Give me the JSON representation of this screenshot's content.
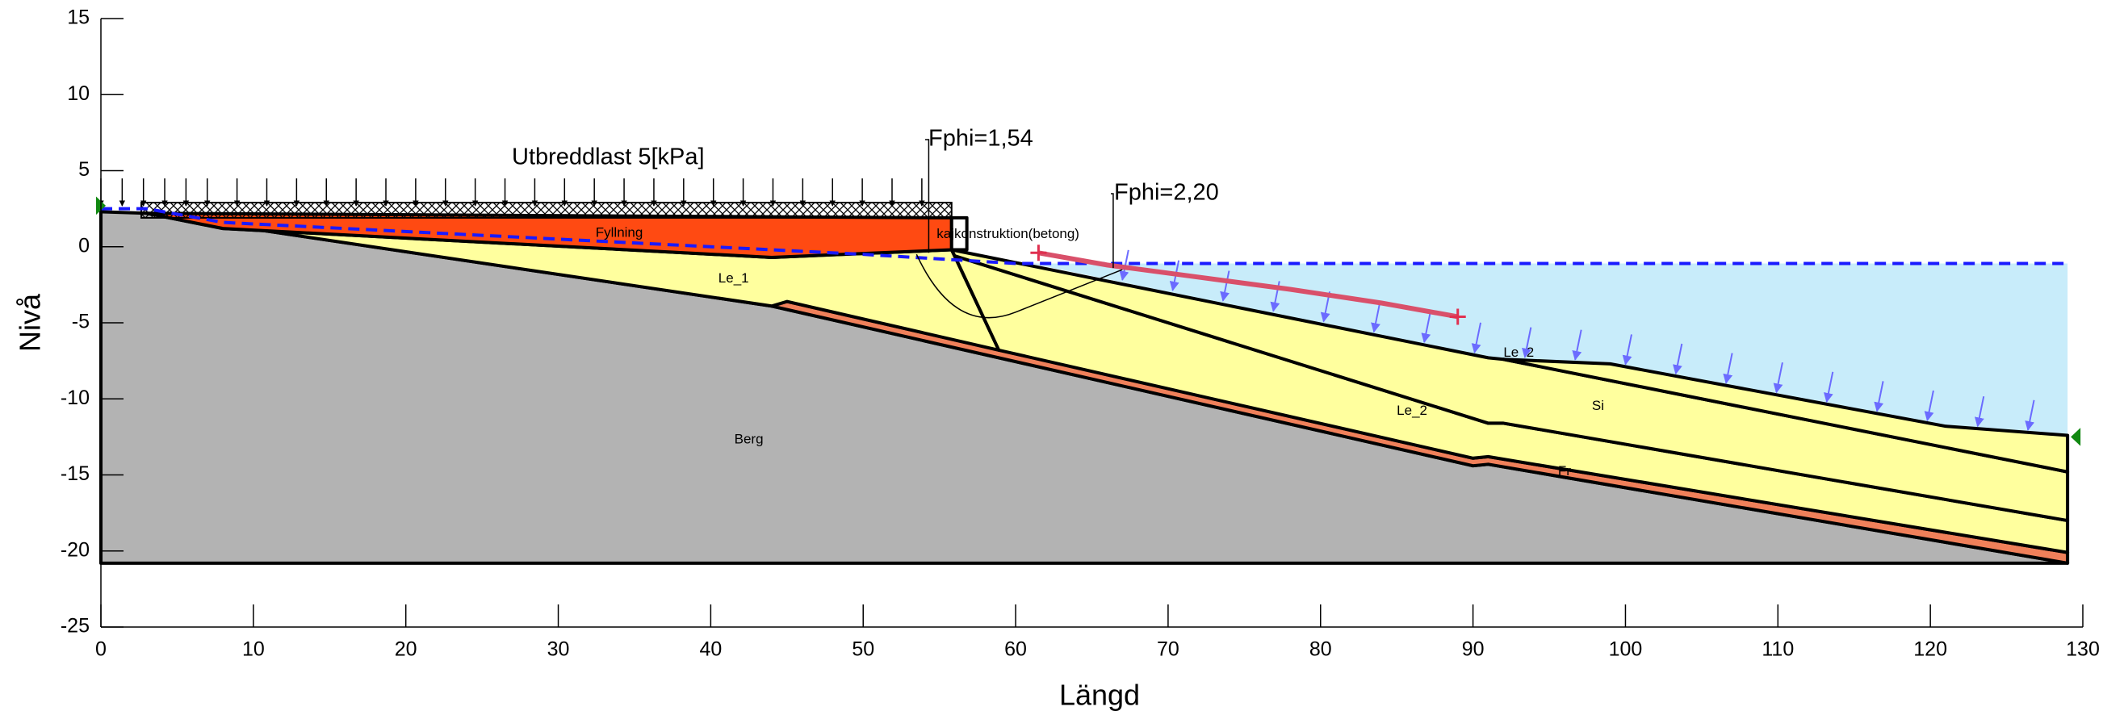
{
  "chart_data": {
    "type": "section",
    "x_label": "Längd",
    "y_label": "Nivå",
    "xlim": [
      0,
      130
    ],
    "ylim": [
      -25,
      15
    ],
    "xticks": [
      0,
      10,
      20,
      30,
      40,
      50,
      60,
      70,
      80,
      90,
      100,
      110,
      120,
      130
    ],
    "yticks": [
      15,
      10,
      5,
      0,
      -5,
      -10,
      -15,
      -20,
      -25
    ],
    "grid": false,
    "water": {
      "color": "#c8ecfa",
      "x": [
        61,
        129,
        129,
        121,
        99,
        91,
        61
      ],
      "y": [
        -1.1,
        -1.1,
        -12.4,
        -11.8,
        -7.7,
        -7.3,
        -1.1
      ]
    },
    "layers": [
      {
        "name": "Berg",
        "color": "#b3b3b3",
        "x": [
          0,
          3,
          44,
          90,
          91,
          129,
          129,
          0
        ],
        "y": [
          2.3,
          2.2,
          -3.9,
          -14.4,
          -14.3,
          -20.8,
          -20.8,
          -20.8
        ]
      },
      {
        "name": "Fr",
        "color": "#f0805a",
        "x": [
          44,
          45,
          90,
          91,
          129,
          129,
          91,
          90
        ],
        "y": [
          -3.9,
          -3.6,
          -13.9,
          -13.8,
          -20.1,
          -20.8,
          -14.3,
          -14.4
        ]
      },
      {
        "name": "Le_1",
        "color": "#ffff9e",
        "x": [
          3,
          8,
          44,
          55.8,
          58.9,
          45,
          44
        ],
        "y": [
          2.2,
          1.2,
          -0.7,
          -0.2,
          -6.8,
          -3.6,
          -3.9
        ]
      },
      {
        "name": "Le_2",
        "color": "#ffff9e",
        "x": [
          56,
          91,
          92,
          129,
          129,
          91,
          90,
          58.9
        ],
        "y": [
          -0.6,
          -11.6,
          -11.6,
          -18,
          -20.1,
          -13.8,
          -13.9,
          -6.8
        ]
      },
      {
        "name": "Si",
        "color": "#ffff9e",
        "x": [
          55.8,
          91,
          92,
          129,
          129,
          92,
          91,
          56
        ],
        "y": [
          -0.2,
          -7.3,
          -7.4,
          -14.8,
          -18,
          -11.6,
          -11.6,
          -0.6
        ]
      },
      {
        "name": "Le_2",
        "color": "#ffff9e",
        "x": [
          92,
          99,
          121,
          129,
          129
        ],
        "y": [
          -7.4,
          -7.7,
          -11.8,
          -12.4,
          -14.8
        ]
      },
      {
        "name": "Fyllning",
        "color": "#ff4a12",
        "x": [
          3,
          55.8,
          55.8,
          44,
          8
        ],
        "y": [
          2.2,
          1.9,
          -0.2,
          -0.7,
          1.2
        ]
      },
      {
        "name": "kajkonstruktion(betong)",
        "color": "#ffffff",
        "x": [
          55.8,
          56.8,
          56.8,
          55.8
        ],
        "y": [
          -0.2,
          -0.2,
          1.9,
          1.9
        ]
      }
    ],
    "phreatic_line": {
      "color": "#1a1aff",
      "x": [
        0,
        3,
        8,
        50,
        60,
        129
      ],
      "y": [
        2.5,
        2.5,
        1.6,
        -0.5,
        -1.1,
        -1.1
      ]
    },
    "load": {
      "label": "Utbreddlast 5[kPa]",
      "x": [
        0,
        55.8
      ],
      "y": [
        1.9,
        2.9
      ]
    },
    "slip_surfaces": [
      {
        "label": "Fphi=1,54",
        "color": "#000000",
        "x": [
          53.5,
          56,
          60,
          64,
          67
        ],
        "y": [
          -0.5,
          -3,
          -4.3,
          -3.8,
          -1.5
        ]
      },
      {
        "label": "Fphi=2,20",
        "color": "#d9506a",
        "x": [
          61.5,
          66,
          72,
          78,
          84,
          89
        ],
        "y": [
          -0.4,
          -1.2,
          -2,
          -2.8,
          -3.7,
          -4.6
        ]
      }
    ]
  }
}
